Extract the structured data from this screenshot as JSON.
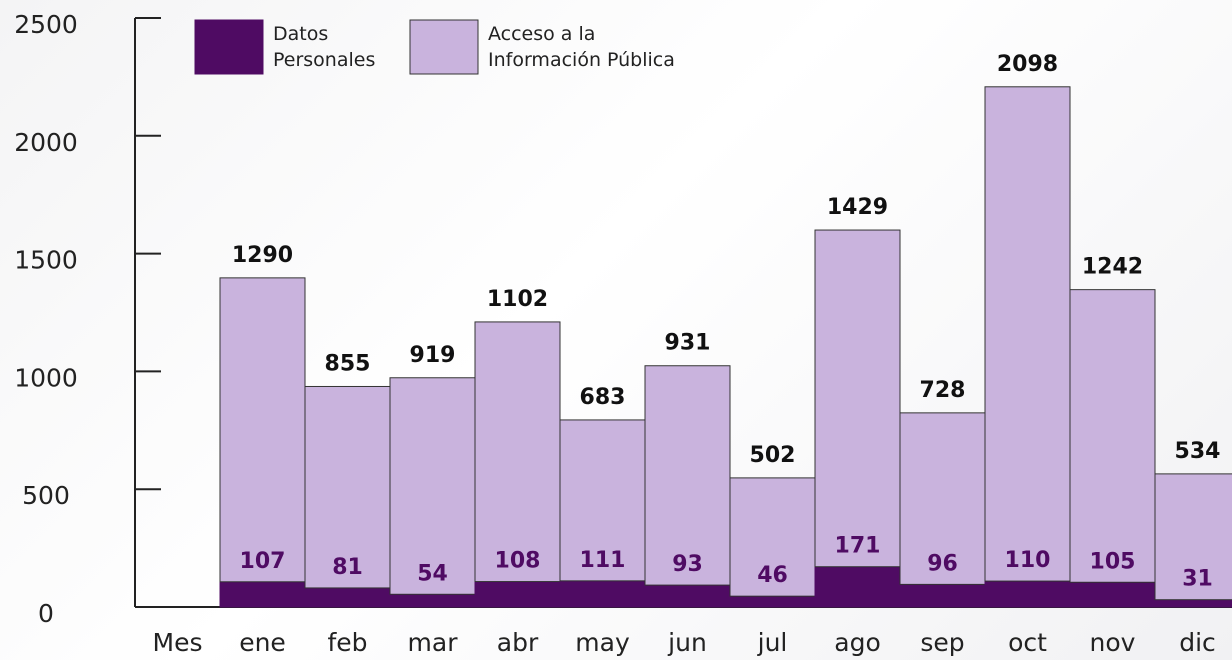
{
  "chart_data": {
    "type": "bar",
    "stacked": true,
    "categories": [
      "Mes",
      "ene",
      "feb",
      "mar",
      "abr",
      "may",
      "jun",
      "jul",
      "ago",
      "sep",
      "oct",
      "nov",
      "dic"
    ],
    "series": [
      {
        "name": "Datos Personales",
        "color": "#4f0b63",
        "values": [
          null,
          107,
          81,
          54,
          108,
          111,
          93,
          46,
          171,
          96,
          110,
          105,
          31
        ]
      },
      {
        "name": "Acceso a la Información Pública",
        "color": "#c9b3dd",
        "values": [
          null,
          1290,
          855,
          919,
          1102,
          683,
          931,
          502,
          1429,
          728,
          2098,
          1242,
          534
        ]
      }
    ],
    "ylim": [
      0,
      2500
    ],
    "yticks": [
      0,
      500,
      1000,
      1500,
      2000,
      2500
    ]
  }
}
